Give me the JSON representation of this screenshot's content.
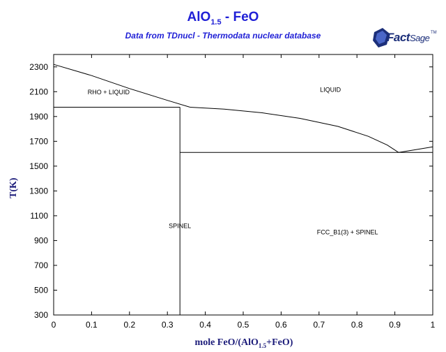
{
  "header": {
    "title_main": "AlO",
    "title_sub": "1.5",
    "title_rest": " - FeO",
    "subtitle": "Data from TDnucl - Thermodata nuclear database"
  },
  "logo": {
    "main": "Fact",
    "sub": "Sage",
    "tm": "TM"
  },
  "axes": {
    "ylabel": "T(K)",
    "xlabel_pre": "mole FeO/(AlO",
    "xlabel_sub": "1.5",
    "xlabel_post": "+FeO)"
  },
  "chart_data": {
    "type": "line",
    "title": "AlO1.5 - FeO",
    "subtitle": "Data from TDnucl - Thermodata nuclear database",
    "xlabel": "mole FeO/(AlO1.5+FeO)",
    "ylabel": "T(K)",
    "xlim": [
      0,
      1
    ],
    "ylim": [
      300,
      2400
    ],
    "grid": false,
    "x_ticks": [
      "0",
      "0.1",
      "0.2",
      "0.3",
      "0.4",
      "0.5",
      "0.6",
      "0.7",
      "0.8",
      "0.9",
      "1"
    ],
    "y_ticks": [
      "300",
      "500",
      "700",
      "900",
      "1100",
      "1300",
      "1500",
      "1700",
      "1900",
      "2100",
      "2300"
    ],
    "series": [
      {
        "points": [
          [
            0,
            2320
          ],
          [
            0.1,
            2230
          ],
          [
            0.2,
            2125
          ],
          [
            0.3,
            2030
          ],
          [
            0.36,
            1975
          ]
        ]
      },
      {
        "points": [
          [
            0.36,
            1975
          ],
          [
            0.45,
            1960
          ],
          [
            0.55,
            1930
          ],
          [
            0.65,
            1885
          ],
          [
            0.75,
            1820
          ],
          [
            0.83,
            1740
          ],
          [
            0.88,
            1670
          ],
          [
            0.91,
            1610
          ]
        ]
      },
      {
        "points": [
          [
            0.91,
            1610
          ],
          [
            0.95,
            1630
          ],
          [
            1.0,
            1655
          ]
        ]
      },
      {
        "points": [
          [
            0,
            1975
          ],
          [
            0.333,
            1975
          ]
        ]
      },
      {
        "points": [
          [
            0.333,
            1975
          ],
          [
            0.333,
            300
          ]
        ]
      },
      {
        "points": [
          [
            0.333,
            1610
          ],
          [
            1.0,
            1610
          ]
        ]
      }
    ],
    "annotations": [
      {
        "text": "RHO + LIQUID",
        "x": 0.145,
        "y": 2080
      },
      {
        "text": "LIQUID",
        "x": 0.73,
        "y": 2100
      },
      {
        "text": "SPINEL",
        "x": 0.333,
        "y": 1000
      },
      {
        "text": "FCC_B1(3) + SPINEL",
        "x": 0.775,
        "y": 950
      }
    ]
  }
}
